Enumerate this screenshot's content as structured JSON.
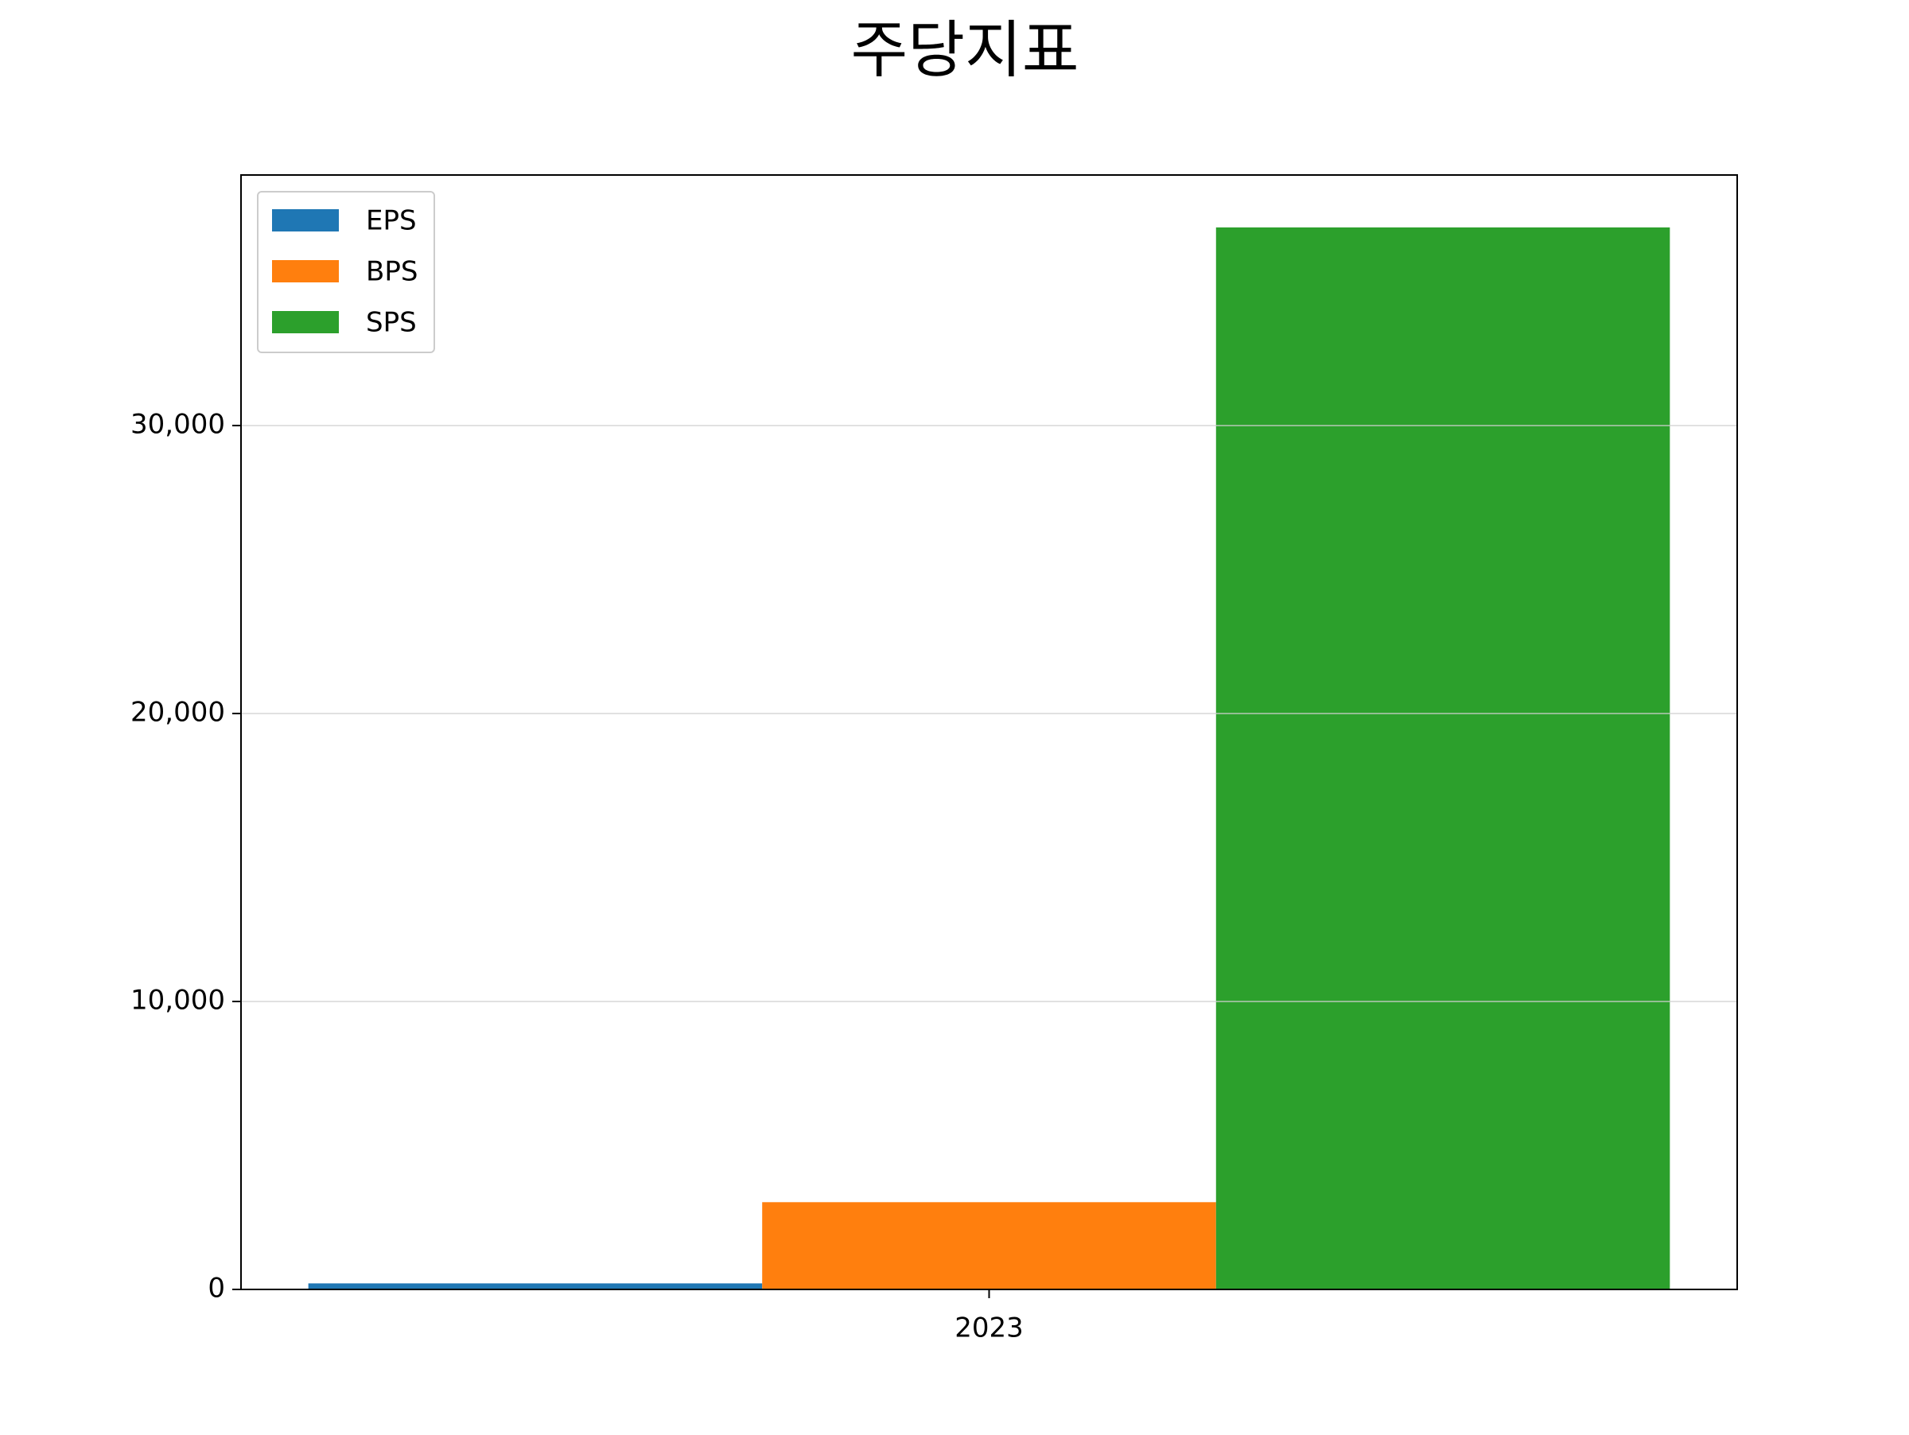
{
  "chart_data": {
    "type": "bar",
    "title": "주당지표",
    "categories": [
      "2023"
    ],
    "series": [
      {
        "name": "EPS",
        "color": "#1f77b4",
        "values": [
          210
        ]
      },
      {
        "name": "BPS",
        "color": "#ff7f0e",
        "values": [
          3030
        ]
      },
      {
        "name": "SPS",
        "color": "#2ca02c",
        "values": [
          36880
        ]
      }
    ],
    "ylim": [
      0,
      38700
    ],
    "yticks": [
      0,
      {
        "value": 10000,
        "label": "10,000"
      },
      {
        "value": 20000,
        "label": "20,000"
      },
      {
        "value": 30000,
        "label": "30,000"
      }
    ],
    "grid": true,
    "legend": "upper left"
  }
}
